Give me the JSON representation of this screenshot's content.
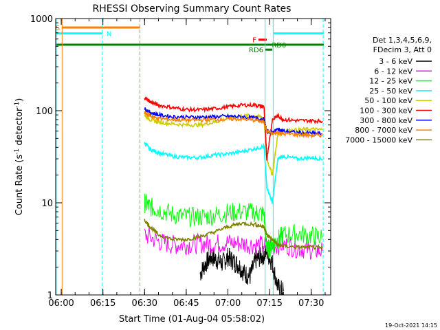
{
  "chart_data": {
    "type": "line",
    "title": "RHESSI Observing Summary Count Rates",
    "xlabel": "Start Time (01-Aug-04 05:58:02)",
    "ylabel_prefix": "Count Rate (s",
    "ylabel_exp": "-1",
    "ylabel_suffix": " detector",
    "ylabel_close": ")",
    "xlim": [
      -2,
      97
    ],
    "ylim": [
      1,
      1000
    ],
    "y_scale": "log",
    "x_ticks": [
      {
        "x": 0,
        "label": "06:00"
      },
      {
        "x": 15,
        "label": "06:15"
      },
      {
        "x": 30,
        "label": "06:30"
      },
      {
        "x": 45,
        "label": "06:45"
      },
      {
        "x": 60,
        "label": "07:00"
      },
      {
        "x": 75,
        "label": "07:15"
      },
      {
        "x": 90,
        "label": "07:30"
      }
    ],
    "y_ticks": [
      {
        "y": 1,
        "label": "1"
      },
      {
        "y": 10,
        "label": "10"
      },
      {
        "y": 100,
        "label": "100"
      },
      {
        "y": 1000,
        "label": "1000"
      }
    ],
    "legend_placement": "right",
    "legend_header": [
      "Det 1,3,4,5,6,9,",
      "FDecim 3, Att 0"
    ],
    "series": [
      {
        "name": "3 - 6 keV",
        "color": "#000000",
        "x": [
          50,
          52,
          54,
          56,
          58,
          60,
          62,
          64,
          66,
          68,
          70,
          72,
          74,
          76,
          78,
          80
        ],
        "y": [
          1.7,
          2.2,
          2.6,
          2.4,
          2.2,
          2.6,
          2.3,
          2.1,
          1.7,
          1.6,
          2.4,
          2.6,
          2.9,
          2.2,
          1.2,
          1.1
        ]
      },
      {
        "name": "6 - 12 keV",
        "color": "#ff00ff",
        "x": [
          30,
          35,
          40,
          45,
          50,
          55,
          60,
          65,
          70,
          75,
          80,
          85,
          90,
          94
        ],
        "y": [
          4.5,
          3.8,
          3.5,
          3.5,
          3.6,
          3.6,
          3.7,
          3.6,
          3.5,
          3.4,
          3.5,
          3.2,
          3.1,
          3.0
        ]
      },
      {
        "name": "12 - 25 keV",
        "color": "#00ff00",
        "x": [
          30,
          32,
          35,
          40,
          45,
          50,
          55,
          60,
          65,
          70,
          73,
          74,
          76,
          78,
          80,
          85,
          90,
          94
        ],
        "y": [
          10,
          9,
          8.5,
          7.5,
          7.0,
          7.0,
          7.3,
          7.8,
          8.0,
          7.8,
          7.5,
          3.0,
          3.5,
          4.0,
          4.5,
          4.6,
          4.4,
          4.2
        ]
      },
      {
        "name": "25 - 50 keV",
        "color": "#00ffff",
        "x": [
          30,
          32,
          35,
          40,
          45,
          50,
          55,
          60,
          65,
          70,
          73,
          74,
          76,
          78,
          80,
          85,
          90,
          94
        ],
        "y": [
          45,
          38,
          35,
          32,
          31,
          31,
          33,
          34,
          36,
          39,
          41,
          15,
          10,
          30,
          32,
          30,
          31,
          30
        ]
      },
      {
        "name": "50 - 100 keV",
        "color": "#cccc00",
        "x": [
          30,
          32,
          35,
          40,
          45,
          50,
          55,
          60,
          65,
          70,
          73,
          74,
          76,
          78,
          80,
          85,
          90,
          94
        ],
        "y": [
          90,
          80,
          75,
          72,
          70,
          70,
          75,
          82,
          88,
          88,
          84,
          30,
          20,
          55,
          60,
          62,
          63,
          62
        ]
      },
      {
        "name": "100 - 300 keV",
        "color": "#ff0000",
        "x": [
          30,
          32,
          35,
          40,
          45,
          50,
          55,
          60,
          65,
          70,
          73,
          74,
          76,
          78,
          80,
          85,
          90,
          94
        ],
        "y": [
          140,
          125,
          115,
          108,
          103,
          102,
          105,
          110,
          115,
          115,
          110,
          30,
          80,
          88,
          80,
          78,
          78,
          77
        ]
      },
      {
        "name": "300 - 800 keV",
        "color": "#0000ff",
        "x": [
          30,
          32,
          35,
          40,
          45,
          50,
          55,
          60,
          65,
          70,
          73,
          74,
          76,
          78,
          80,
          85,
          90,
          94
        ],
        "y": [
          105,
          96,
          90,
          86,
          85,
          85,
          86,
          87,
          86,
          83,
          80,
          60,
          58,
          63,
          60,
          58,
          57,
          56
        ]
      },
      {
        "name": "800 - 7000 keV",
        "color": "#ff8000",
        "x": [
          30,
          32,
          35,
          40,
          45,
          50,
          55,
          60,
          65,
          70,
          73,
          74,
          76,
          78,
          80,
          85,
          90,
          94
        ],
        "y": [
          95,
          88,
          82,
          80,
          79,
          79,
          80,
          81,
          81,
          79,
          75,
          60,
          56,
          58,
          56,
          55,
          54,
          54
        ]
      },
      {
        "name": "7000 - 15000 keV",
        "color": "#808000",
        "x": [
          30,
          32,
          35,
          40,
          45,
          50,
          55,
          60,
          65,
          70,
          73,
          74,
          76,
          78,
          80,
          85,
          90,
          94
        ],
        "y": [
          6.5,
          5.5,
          4.5,
          4.0,
          4.0,
          4.3,
          4.8,
          5.5,
          6.0,
          5.8,
          5.5,
          4.5,
          4.0,
          3.5,
          3.4,
          3.3,
          3.3,
          3.2
        ]
      }
    ],
    "flag_bars": [
      {
        "label": "S",
        "color": "#ff8000",
        "x0": 0.3,
        "x1": 28.3,
        "y": 800,
        "label_side": "left"
      },
      {
        "label": "N",
        "color": "#00ffff",
        "x0": -2,
        "x1": 14.8,
        "y": 690,
        "label_side": "right"
      },
      {
        "label": "N",
        "color": "#00ffff",
        "x0": 76.5,
        "x1": 94.5,
        "y": 690,
        "label_side": "none"
      },
      {
        "label": "F",
        "color": "#ff0000",
        "x0": 71,
        "x1": 74,
        "y": 590,
        "label_side": "left"
      },
      {
        "label": "RD0",
        "color": "#008000",
        "x0": -2,
        "x1": 94.5,
        "y": 520,
        "label_side": "none"
      },
      {
        "label": "RD6",
        "color": "#008000",
        "x0": 73.5,
        "x1": 76,
        "y": 460,
        "label_side": "left"
      }
    ],
    "flag_labels": [
      {
        "text": "RD0",
        "color": "#008000",
        "x": 75.8,
        "y": 520
      }
    ],
    "vlines": [
      {
        "x": 0.3,
        "color": "#ff8000",
        "style": "solid"
      },
      {
        "x": 28.3,
        "color": "#ff8000",
        "style": "dashed"
      },
      {
        "x": 14.8,
        "color": "#00ffff",
        "style": "dashed"
      },
      {
        "x": 94.3,
        "color": "#00ffff",
        "style": "dashed"
      },
      {
        "x": 73.4,
        "color": "#00ffff",
        "style": "solid"
      },
      {
        "x": 76.3,
        "color": "#00ffff",
        "style": "solid"
      },
      {
        "x": -1.8,
        "color": "#00ffff",
        "style": "solid"
      }
    ],
    "footer": "19-Oct-2021 14:15"
  }
}
